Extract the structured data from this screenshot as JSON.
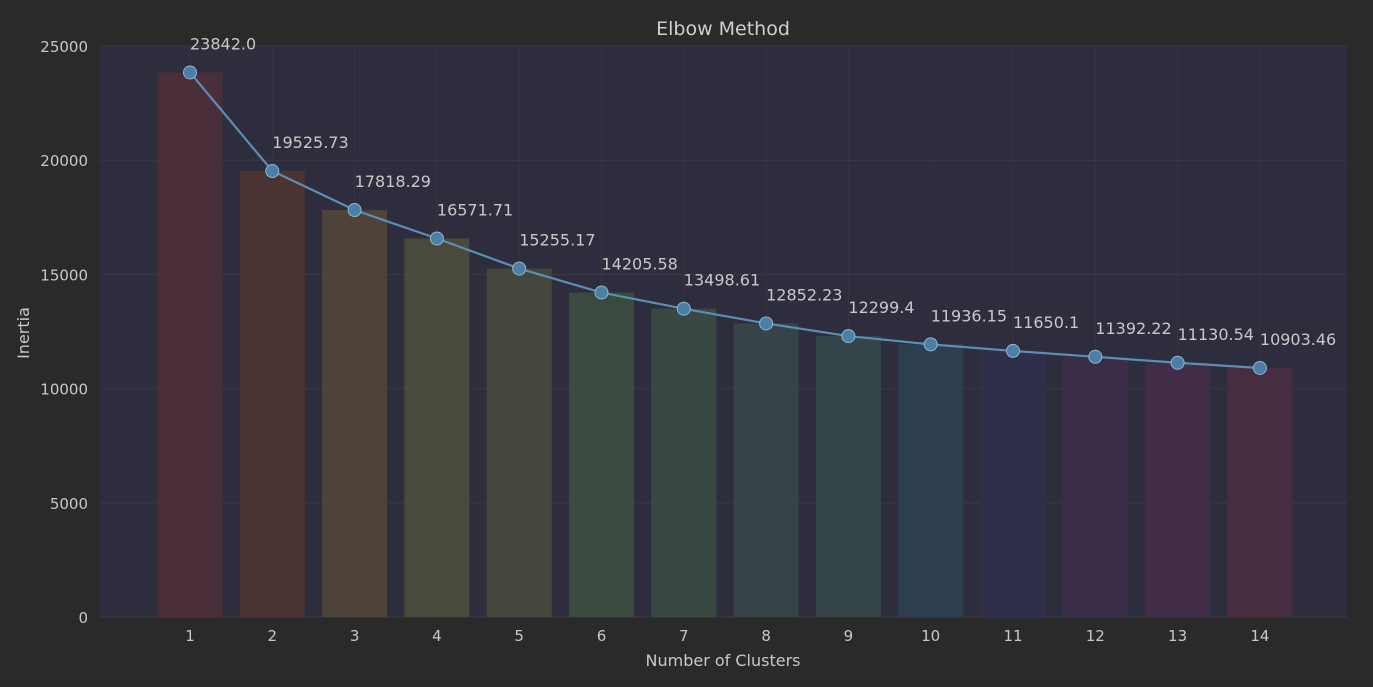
{
  "chart_data": {
    "type": "bar",
    "title": "Elbow Method",
    "xlabel": "Number of Clusters",
    "ylabel": "Inertia",
    "categories": [
      "1",
      "2",
      "3",
      "4",
      "5",
      "6",
      "7",
      "8",
      "9",
      "10",
      "11",
      "12",
      "13",
      "14"
    ],
    "values": [
      23842.0,
      19525.73,
      17818.29,
      16571.71,
      15255.17,
      14205.58,
      13498.61,
      12852.23,
      12299.4,
      11936.15,
      11650.1,
      11392.22,
      11130.54,
      10903.46
    ],
    "value_labels": [
      "23842.0",
      "19525.73",
      "17818.29",
      "16571.71",
      "15255.17",
      "14205.58",
      "13498.61",
      "12852.23",
      "12299.4",
      "11936.15",
      "11650.1",
      "11392.22",
      "11130.54",
      "10903.46"
    ],
    "overlay_line": true,
    "ylim": [
      0,
      25000
    ],
    "yticks": [
      0,
      5000,
      10000,
      15000,
      20000,
      25000
    ],
    "grid": true,
    "colors": {
      "background": "#2a2a2a",
      "plot_background": "#2e2d3d",
      "line": "#5a8fb3",
      "marker": "#4b7fa6",
      "bars": [
        "#4a2e39",
        "#4a3332",
        "#4d4339",
        "#4a493d",
        "#46473c",
        "#3a4a3f",
        "#3a4844",
        "#374447",
        "#344449",
        "#2d3f4e",
        "#302f49",
        "#3a2d48",
        "#422d49",
        "#472d40"
      ]
    }
  }
}
